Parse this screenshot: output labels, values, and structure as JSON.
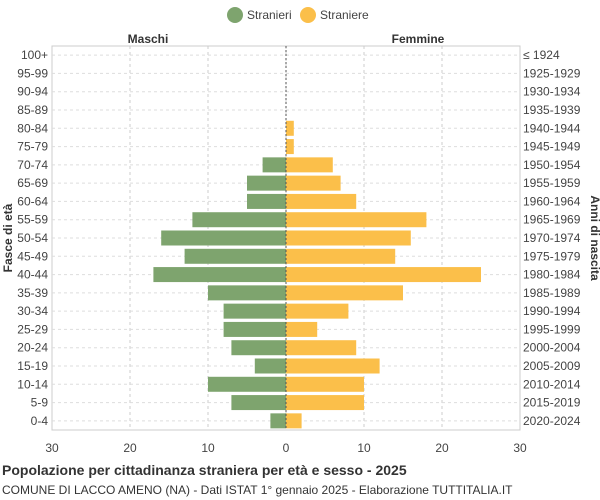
{
  "chart_data": {
    "type": "bar",
    "orientation": "horizontal-population-pyramid",
    "title": "Popolazione per cittadinanza straniera per età e sesso - 2025",
    "subtitle": "COMUNE DI LACCO AMENO (NA) - Dati ISTAT 1° gennaio 2025 - Elaborazione TUTTITALIA.IT",
    "left_header": "Maschi",
    "right_header": "Femmine",
    "ylabel_left": "Fasce di età",
    "ylabel_right": "Anni di nascita",
    "xlim": [
      -30,
      30
    ],
    "x_ticks": [
      -30,
      -20,
      -10,
      0,
      10,
      20,
      30
    ],
    "x_tick_labels": [
      "30",
      "20",
      "10",
      "0",
      "10",
      "20",
      "30"
    ],
    "legend_position": "top-center",
    "grid": true,
    "categories": [
      "100+",
      "95-99",
      "90-94",
      "85-89",
      "80-84",
      "75-79",
      "70-74",
      "65-69",
      "60-64",
      "55-59",
      "50-54",
      "45-49",
      "40-44",
      "35-39",
      "30-34",
      "25-29",
      "20-24",
      "15-19",
      "10-14",
      "5-9",
      "0-4"
    ],
    "birth_years": [
      "≤ 1924",
      "1925-1929",
      "1930-1934",
      "1935-1939",
      "1940-1944",
      "1945-1949",
      "1950-1954",
      "1955-1959",
      "1960-1964",
      "1965-1969",
      "1970-1974",
      "1975-1979",
      "1980-1984",
      "1985-1989",
      "1990-1994",
      "1995-1999",
      "2000-2004",
      "2005-2009",
      "2010-2014",
      "2015-2019",
      "2020-2024"
    ],
    "series": [
      {
        "name": "Stranieri",
        "color": "#7ea46e",
        "values": [
          0,
          0,
          0,
          0,
          0,
          0,
          3,
          5,
          5,
          12,
          16,
          13,
          17,
          10,
          8,
          8,
          7,
          4,
          10,
          7,
          2
        ]
      },
      {
        "name": "Straniere",
        "color": "#fbbf4a",
        "values": [
          0,
          0,
          0,
          0,
          1,
          1,
          6,
          7,
          9,
          18,
          16,
          14,
          25,
          15,
          8,
          4,
          9,
          12,
          10,
          10,
          2
        ]
      }
    ]
  }
}
